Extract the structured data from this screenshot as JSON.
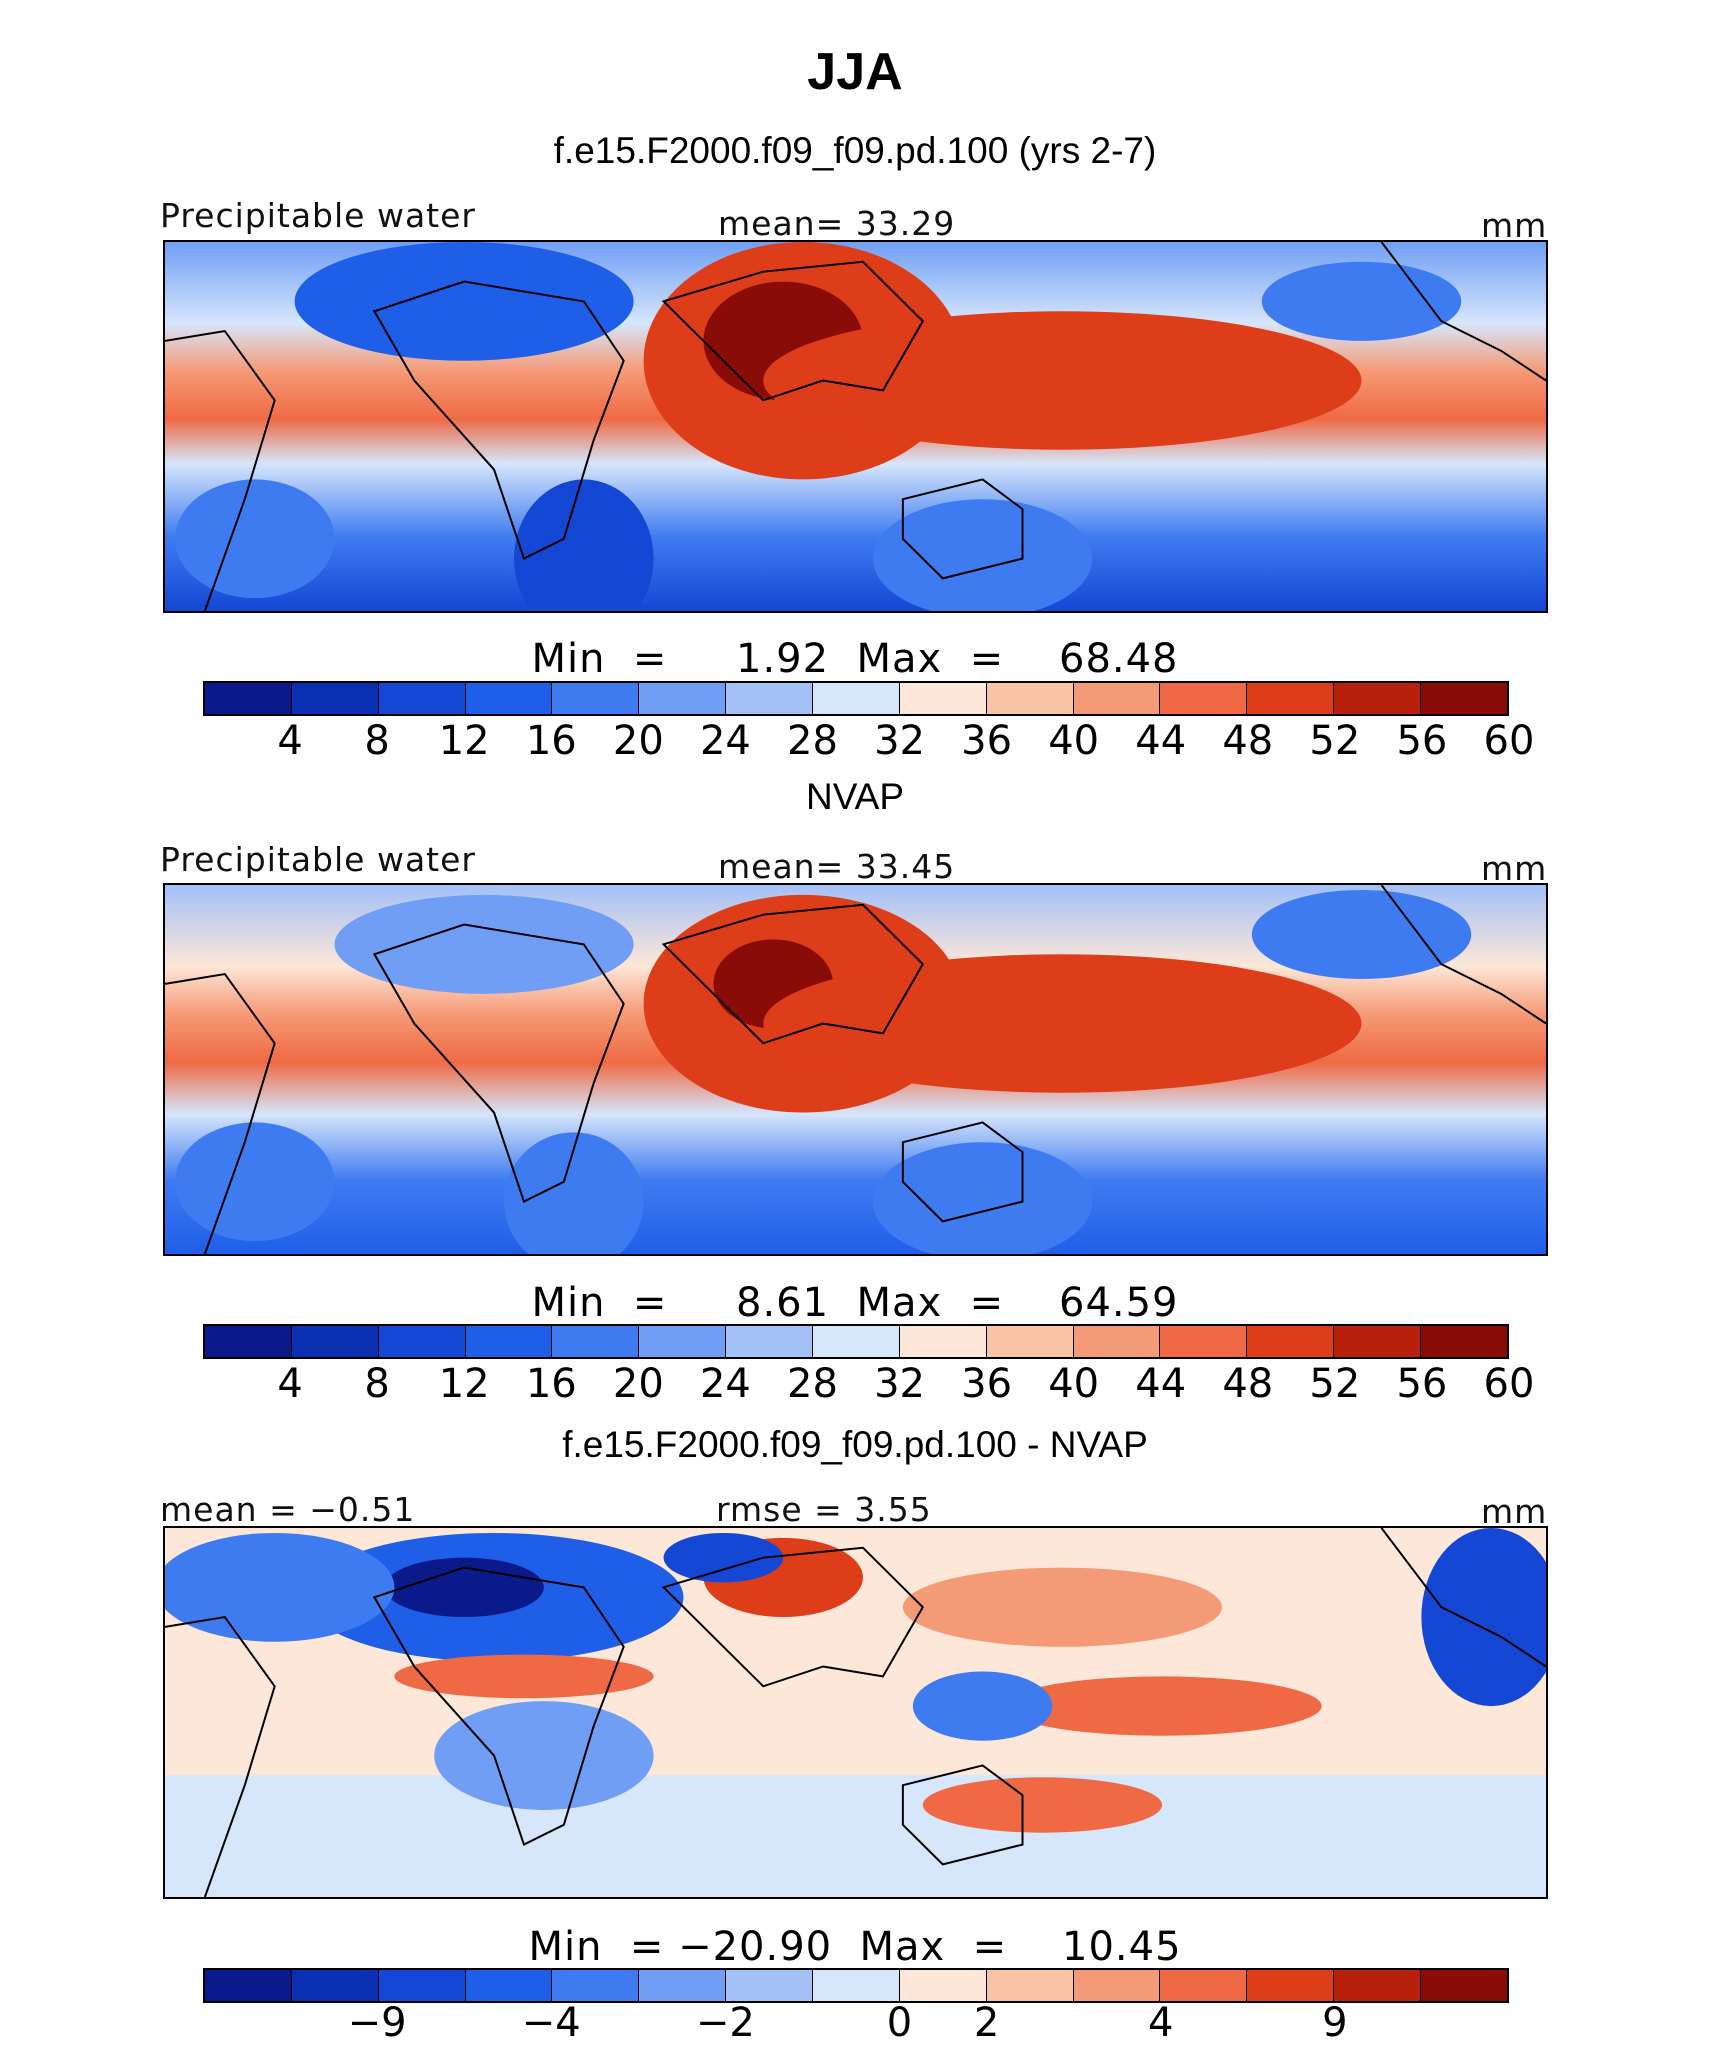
{
  "figure": {
    "season": "JJA",
    "panel1_title": "f.e15.F2000.f09_f09.pd.100 (yrs 2-7)",
    "panel2_title": "NVAP",
    "panel3_title": "f.e15.F2000.f09_f09.pd.100 - NVAP"
  },
  "panels": [
    {
      "left_label": "Precipitable water",
      "center_label": "mean=   33.29",
      "units": "mm",
      "minmax": "Min  =     1.92  Max  =    68.48",
      "cbar_ticks": [
        "4",
        "8",
        "12",
        "16",
        "20",
        "24",
        "28",
        "32",
        "36",
        "40",
        "44",
        "48",
        "52",
        "56",
        "60"
      ]
    },
    {
      "left_label": "Precipitable water",
      "center_label": "mean=   33.45",
      "units": "mm",
      "minmax": "Min  =     8.61  Max  =    64.59",
      "cbar_ticks": [
        "4",
        "8",
        "12",
        "16",
        "20",
        "24",
        "28",
        "32",
        "36",
        "40",
        "44",
        "48",
        "52",
        "56",
        "60"
      ]
    },
    {
      "left_label": "mean =   −0.51",
      "center_label": "rmse =    3.55",
      "units": "mm",
      "minmax": "Min  = −20.90  Max  =    10.45",
      "cbar_ticks": [
        "−9",
        "−4",
        "−2",
        "0",
        "2",
        "4",
        "9"
      ]
    }
  ],
  "colors": {
    "palette": [
      "#0a1a8a",
      "#0a2fb0",
      "#1447d4",
      "#1f5fe8",
      "#3f7bf0",
      "#6f9ef4",
      "#a3c0f7",
      "#d6e6fb",
      "#fde7d8",
      "#f9c4a6",
      "#f59a76",
      "#ef6a44",
      "#de3d1a",
      "#b8200e",
      "#8a0c08"
    ],
    "coast": "#000000"
  }
}
